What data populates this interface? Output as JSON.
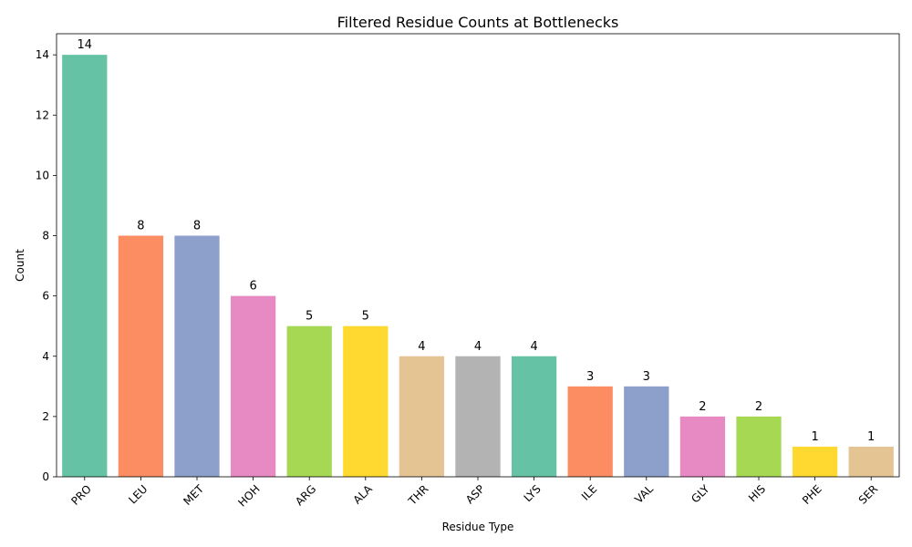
{
  "chart_data": {
    "type": "bar",
    "title": "Filtered Residue Counts at Bottlenecks",
    "xlabel": "Residue Type",
    "ylabel": "Count",
    "categories": [
      "PRO",
      "LEU",
      "MET",
      "HOH",
      "ARG",
      "ALA",
      "THR",
      "ASP",
      "LYS",
      "ILE",
      "VAL",
      "GLY",
      "HIS",
      "PHE",
      "SER"
    ],
    "values": [
      14,
      8,
      8,
      6,
      5,
      5,
      4,
      4,
      4,
      3,
      3,
      2,
      2,
      1,
      1
    ],
    "colors": [
      "#66c2a5",
      "#fc8d62",
      "#8da0cb",
      "#e78ac3",
      "#a6d854",
      "#ffd92f",
      "#e5c494",
      "#b3b3b3",
      "#66c2a5",
      "#fc8d62",
      "#8da0cb",
      "#e78ac3",
      "#a6d854",
      "#ffd92f",
      "#e5c494"
    ],
    "ylim": [
      0,
      14.7
    ],
    "yticks": [
      0,
      2,
      4,
      6,
      8,
      10,
      12,
      14
    ],
    "grid": false,
    "legend": "none",
    "data_labels": true
  }
}
